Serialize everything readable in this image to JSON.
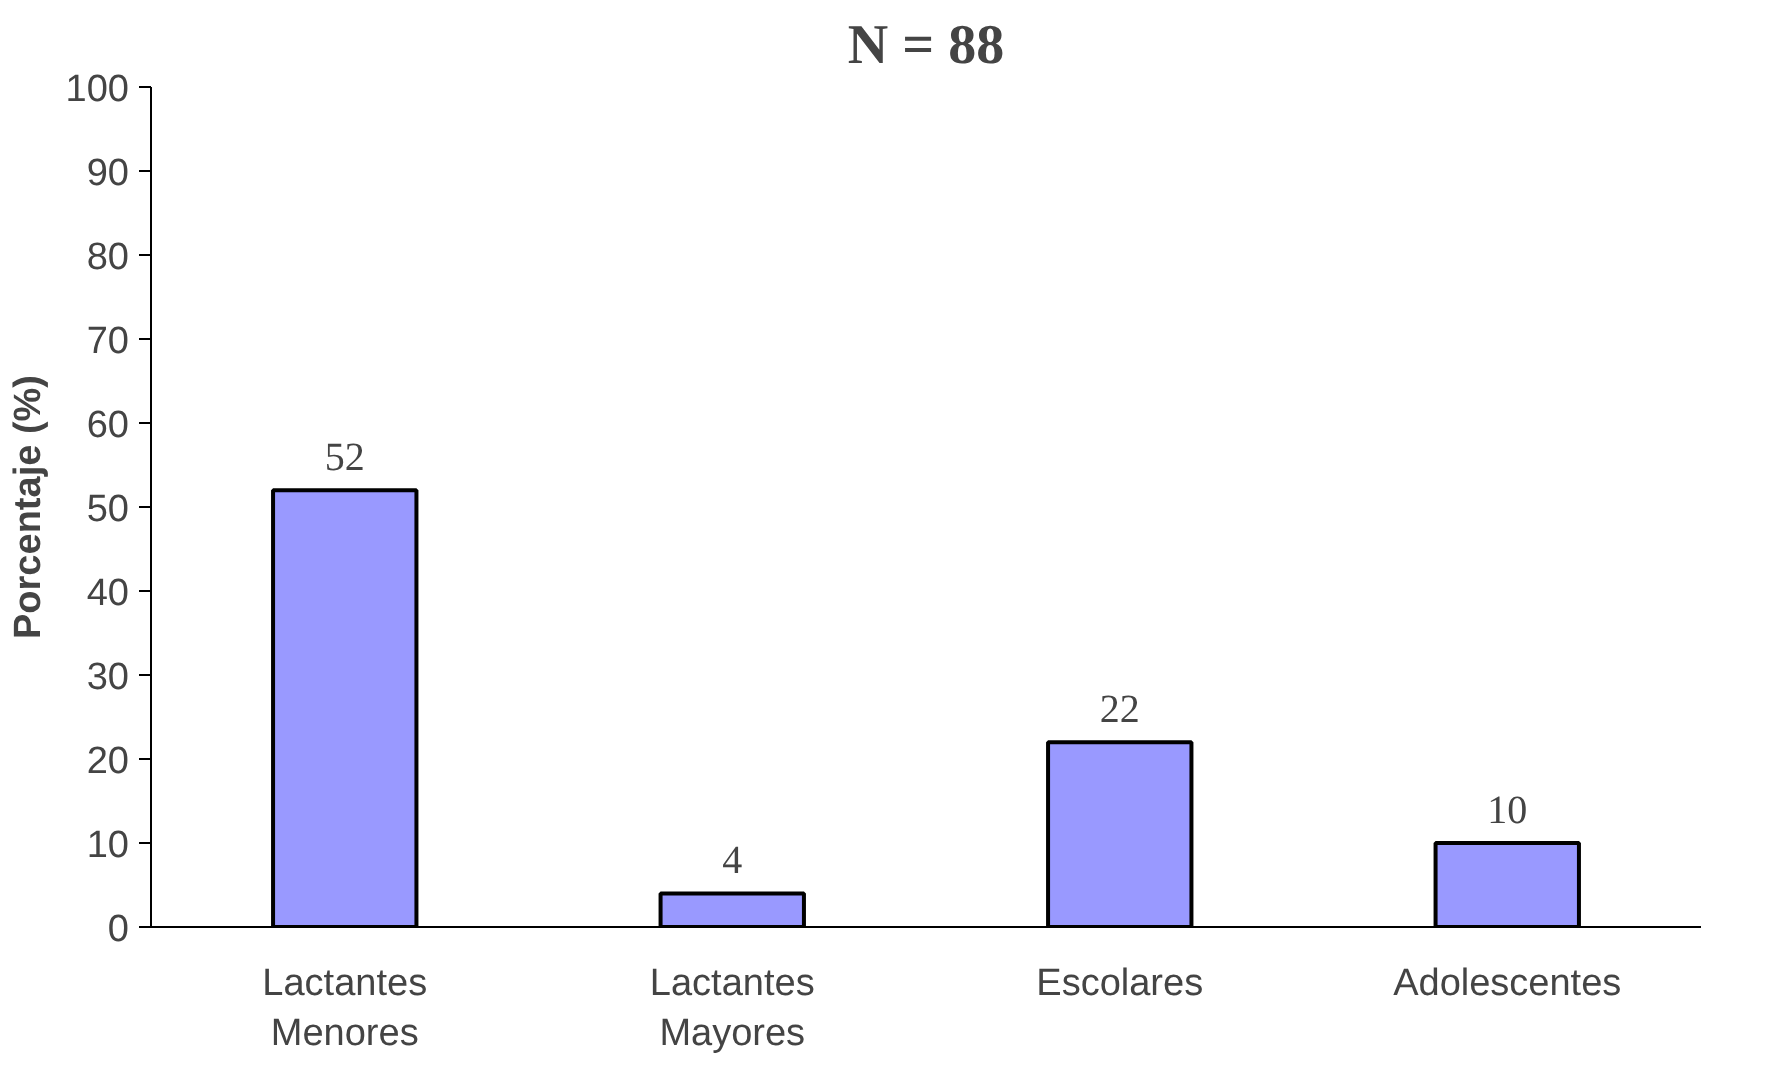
{
  "chart_data": {
    "type": "bar",
    "title": "N = 88",
    "ylabel": "Porcentaje (%)",
    "categories": [
      "Lactantes\nMenores",
      "Lactantes\nMayores",
      "Escolares",
      "Adolescentes"
    ],
    "values": [
      52,
      4,
      22,
      10
    ],
    "color": "#9999ff",
    "ylim": [
      0,
      100
    ],
    "yticks": [
      0,
      10,
      20,
      30,
      40,
      50,
      60,
      70,
      80,
      90,
      100
    ],
    "grid": false,
    "data_labels": true
  }
}
